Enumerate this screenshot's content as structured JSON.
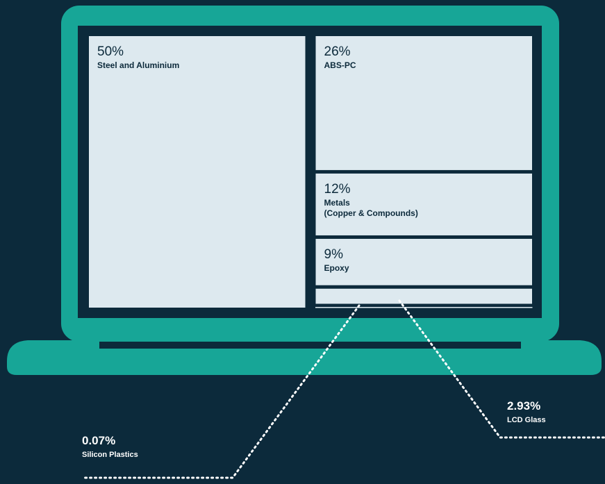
{
  "chart_data": {
    "type": "treemap",
    "categories": [
      "Steel and Aluminium",
      "ABS-PC",
      "Metals\n(Copper & Compounds)",
      "Epoxy",
      "LCD Glass",
      "Silicon Plastics"
    ],
    "values": [
      50,
      26,
      12,
      9,
      2.93,
      0.07
    ],
    "value_labels": [
      "50%",
      "26%",
      "12%",
      "9%",
      "2.93%",
      "0.07%"
    ],
    "color": "#dde9ef"
  }
}
